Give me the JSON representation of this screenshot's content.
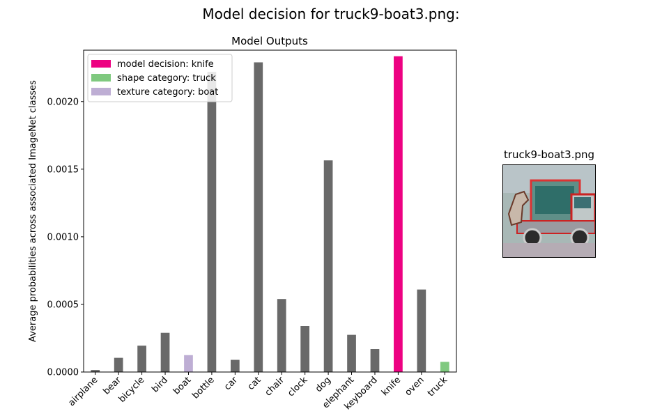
{
  "figure": {
    "title": "Model decision for truck9-boat3.png:"
  },
  "image_panel": {
    "title": "truck9-boat3.png",
    "content_icon": "truck-photo-icon"
  },
  "colors": {
    "default_bar": "#696969",
    "decision": "#ed0282",
    "shape": "#7fc97f",
    "texture": "#beaed4"
  },
  "chart_data": {
    "type": "bar",
    "title": "Model Outputs",
    "xlabel": "",
    "ylabel": "Average probabilities across associated ImageNet classes",
    "ylim": [
      0,
      0.00238
    ],
    "yticks": [
      0.0,
      0.0005,
      0.001,
      0.0015,
      0.002
    ],
    "ytick_labels": [
      "0.0000",
      "0.0005",
      "0.0010",
      "0.0015",
      "0.0020"
    ],
    "categories": [
      "airplane",
      "bear",
      "bicycle",
      "bird",
      "boat",
      "bottle",
      "car",
      "cat",
      "chair",
      "clock",
      "dog",
      "elephant",
      "keyboard",
      "knife",
      "oven",
      "truck"
    ],
    "values": [
      1.5e-05,
      0.000105,
      0.000195,
      0.00029,
      0.000125,
      0.00222,
      9e-05,
      0.00229,
      0.00054,
      0.00034,
      0.001565,
      0.000275,
      0.00017,
      0.002335,
      0.00061,
      7.5e-05
    ],
    "highlight": {
      "knife": "decision",
      "truck": "shape",
      "boat": "texture"
    },
    "legend": {
      "placement": "upper-left",
      "entries": [
        {
          "label": "model decision: knife",
          "role": "decision"
        },
        {
          "label": "shape category: truck",
          "role": "shape"
        },
        {
          "label": "texture category: boat",
          "role": "texture"
        }
      ]
    },
    "grid": false
  }
}
